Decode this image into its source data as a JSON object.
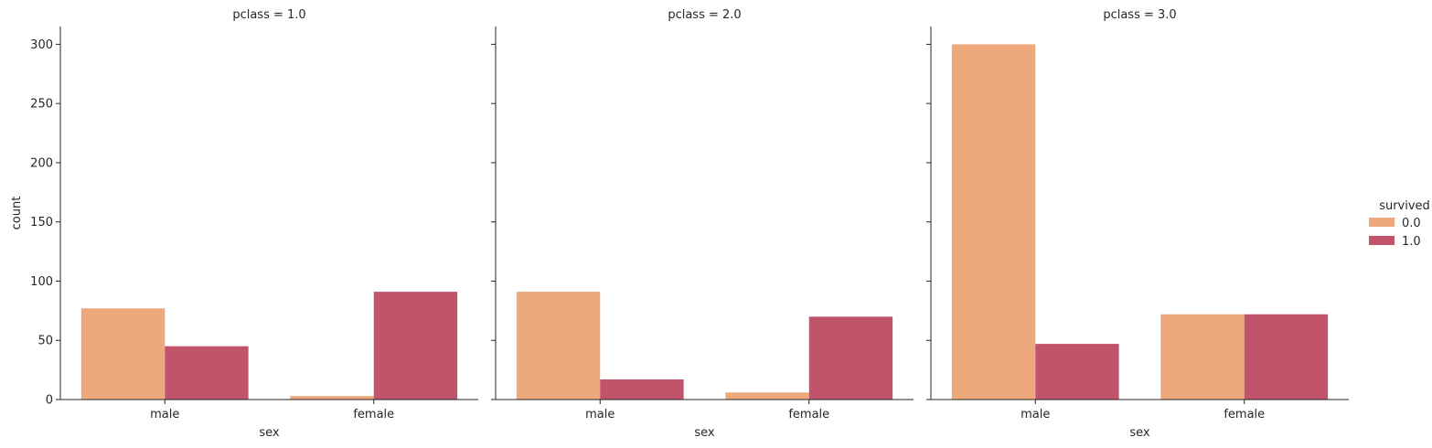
{
  "chart_data": {
    "type": "bar",
    "facet_variable": "pclass",
    "categories": [
      "male",
      "female"
    ],
    "hue_variable": "survived",
    "xlabel": "sex",
    "ylabel": "count",
    "ylim": [
      0,
      315
    ],
    "yticks": [
      0,
      50,
      100,
      150,
      200,
      250,
      300
    ],
    "grid": false,
    "legend": {
      "title": "survived",
      "placement": "right",
      "entries": [
        "0.0",
        "1.0"
      ],
      "colors": [
        "#eda97c",
        "#c1536b"
      ]
    },
    "facets": [
      {
        "title": "pclass = 1.0",
        "series": [
          {
            "name": "0.0",
            "values": [
              77,
              3
            ]
          },
          {
            "name": "1.0",
            "values": [
              45,
              91
            ]
          }
        ]
      },
      {
        "title": "pclass = 2.0",
        "series": [
          {
            "name": "0.0",
            "values": [
              91,
              6
            ]
          },
          {
            "name": "1.0",
            "values": [
              17,
              70
            ]
          }
        ]
      },
      {
        "title": "pclass = 3.0",
        "series": [
          {
            "name": "0.0",
            "values": [
              300,
              72
            ]
          },
          {
            "name": "1.0",
            "values": [
              47,
              72
            ]
          }
        ]
      }
    ]
  }
}
